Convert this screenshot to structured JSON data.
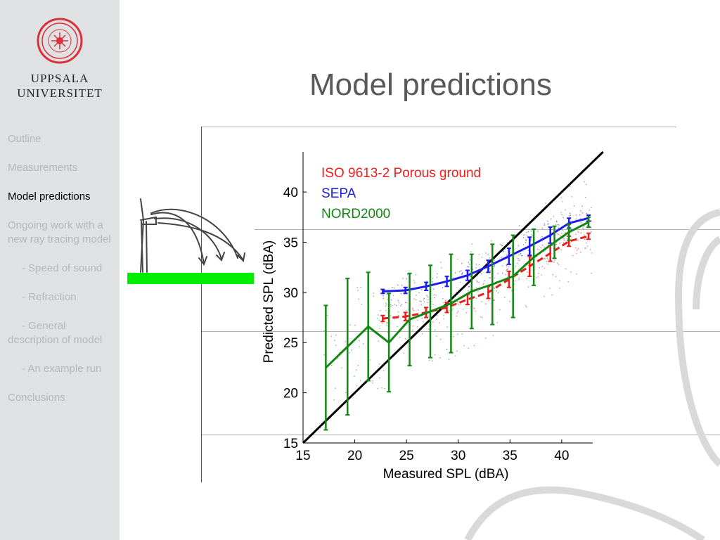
{
  "sidebar": {
    "logo_line1": "UPPSALA",
    "logo_line2": "UNIVERSITET",
    "nav": [
      {
        "label": "Outline"
      },
      {
        "label": "Measurements"
      },
      {
        "label": "Model predictions"
      },
      {
        "label": "Ongoing work with a new ray tracing model"
      },
      {
        "label": "- Speed of sound"
      },
      {
        "label": "- Refraction"
      },
      {
        "label": "- General description of model"
      },
      {
        "label": "- An example run"
      },
      {
        "label": "Conclusions"
      }
    ],
    "active_index": 2
  },
  "slide": {
    "title": "Model predictions"
  },
  "colors": {
    "iso": "#ee1c1c",
    "sepa": "#1c1cee",
    "nord": "#118811",
    "diag": "#000000",
    "logo_red": "#d9303a",
    "green_bar": "#00ee00"
  },
  "chart_data": {
    "type": "line",
    "xlabel": "Measured SPL (dBA)",
    "ylabel": "Predicted SPL (dBA)",
    "xlim": [
      15,
      43
    ],
    "ylim": [
      15,
      44
    ],
    "xticks": [
      "15",
      "20",
      "25",
      "30",
      "35",
      "40"
    ],
    "yticks": [
      "15",
      "20",
      "25",
      "30",
      "35",
      "40"
    ],
    "grid": false,
    "legend": "top-left",
    "series": [
      {
        "name": "ISO 9613-2 Porous ground",
        "style": "dashed",
        "points": [
          {
            "x": 22.7,
            "y": 27.4,
            "err": 0.3
          },
          {
            "x": 24.9,
            "y": 27.6,
            "err": 0.4
          },
          {
            "x": 26.9,
            "y": 28.0,
            "err": 0.5
          },
          {
            "x": 28.9,
            "y": 28.5,
            "err": 0.5
          },
          {
            "x": 30.9,
            "y": 29.3,
            "err": 0.5
          },
          {
            "x": 32.9,
            "y": 30.0,
            "err": 0.6
          },
          {
            "x": 34.9,
            "y": 31.3,
            "err": 0.8
          },
          {
            "x": 36.9,
            "y": 32.6,
            "err": 1.0
          },
          {
            "x": 38.9,
            "y": 33.9,
            "err": 0.8
          },
          {
            "x": 40.7,
            "y": 35.1,
            "err": 0.5
          },
          {
            "x": 42.6,
            "y": 35.6,
            "err": 0.3
          }
        ]
      },
      {
        "name": "SEPA",
        "style": "solid",
        "points": [
          {
            "x": 22.7,
            "y": 30.1,
            "err": 0.2
          },
          {
            "x": 24.9,
            "y": 30.2,
            "err": 0.3
          },
          {
            "x": 26.9,
            "y": 30.6,
            "err": 0.4
          },
          {
            "x": 28.9,
            "y": 31.1,
            "err": 0.5
          },
          {
            "x": 30.9,
            "y": 31.7,
            "err": 0.5
          },
          {
            "x": 32.9,
            "y": 32.6,
            "err": 0.6
          },
          {
            "x": 34.9,
            "y": 33.6,
            "err": 0.8
          },
          {
            "x": 36.9,
            "y": 34.6,
            "err": 0.9
          },
          {
            "x": 38.9,
            "y": 35.7,
            "err": 0.8
          },
          {
            "x": 40.7,
            "y": 36.9,
            "err": 0.5
          },
          {
            "x": 42.6,
            "y": 37.4,
            "err": 0.3
          }
        ]
      },
      {
        "name": "NORD2000",
        "style": "solid",
        "points": [
          {
            "x": 17.2,
            "y": 22.5,
            "err": 6.2
          },
          {
            "x": 19.3,
            "y": 24.6,
            "err": 6.8
          },
          {
            "x": 21.3,
            "y": 26.6,
            "err": 5.4
          },
          {
            "x": 23.3,
            "y": 25.0,
            "err": 4.9
          },
          {
            "x": 25.3,
            "y": 27.3,
            "err": 4.6
          },
          {
            "x": 27.3,
            "y": 28.1,
            "err": 4.6
          },
          {
            "x": 29.3,
            "y": 28.9,
            "err": 4.9
          },
          {
            "x": 31.3,
            "y": 30.1,
            "err": 3.7
          },
          {
            "x": 33.3,
            "y": 30.8,
            "err": 4.0
          },
          {
            "x": 35.3,
            "y": 31.6,
            "err": 4.1
          },
          {
            "x": 37.3,
            "y": 33.5,
            "err": 2.8
          },
          {
            "x": 39.3,
            "y": 35.0,
            "err": 1.6
          },
          {
            "x": 40.7,
            "y": 36.0,
            "err": 0.8
          },
          {
            "x": 42.6,
            "y": 37.0,
            "err": 0.5
          }
        ]
      }
    ]
  }
}
